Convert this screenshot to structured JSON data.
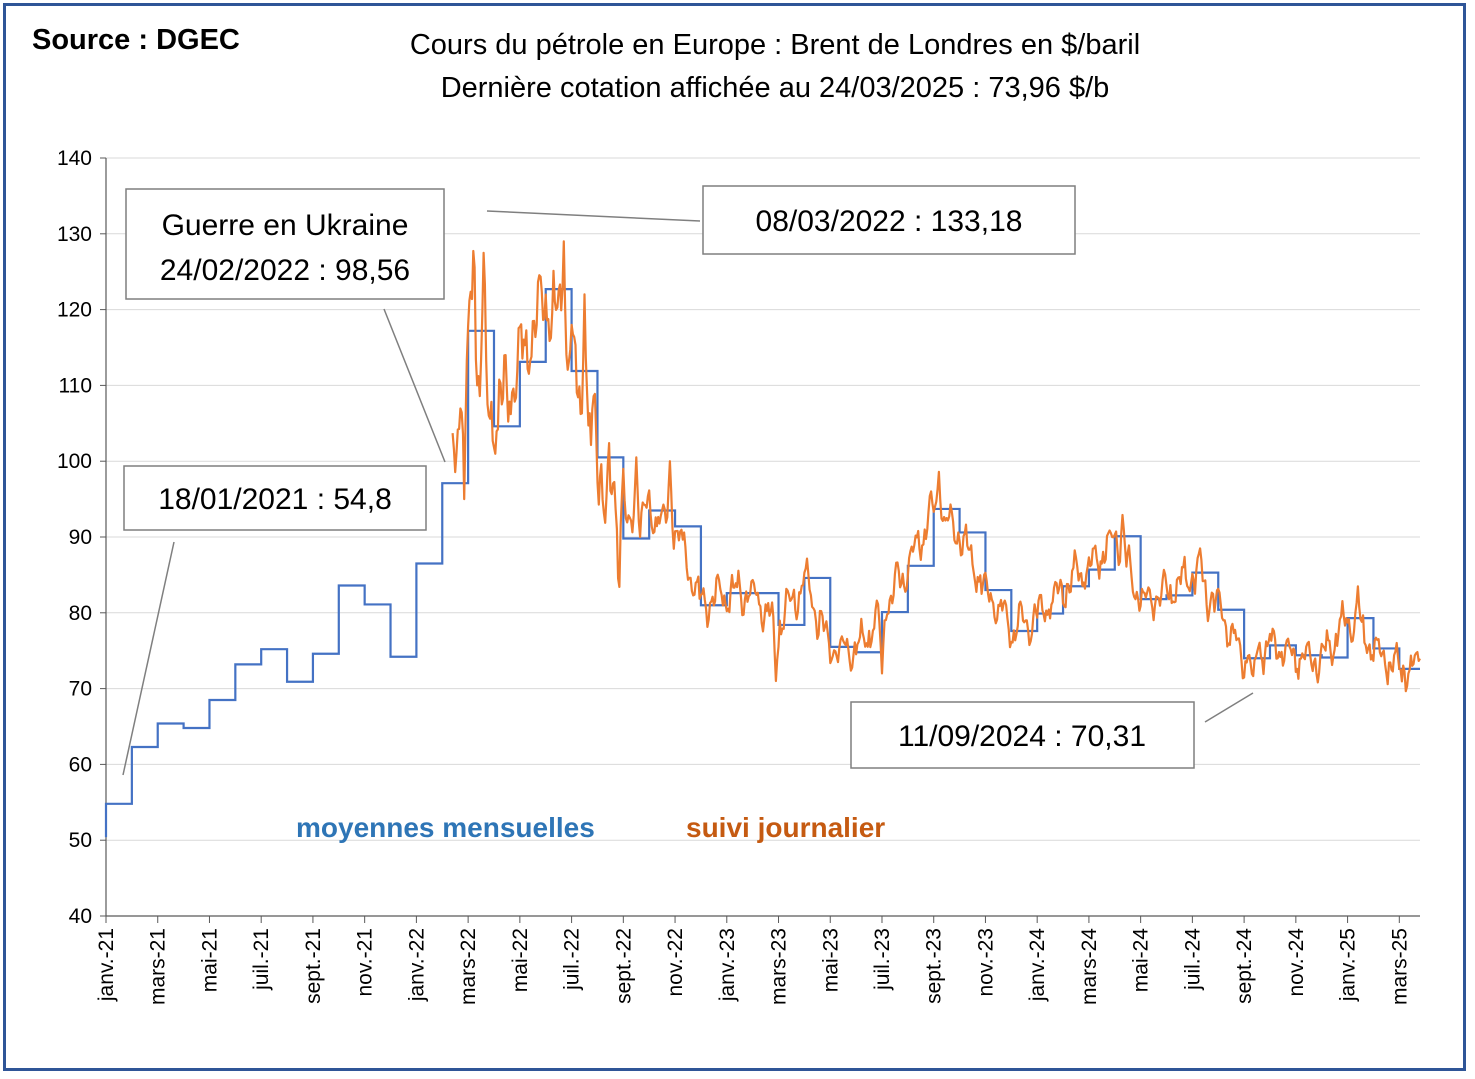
{
  "header": {
    "source": "Source : DGEC",
    "title_line1": "Cours du pétrole en Europe : Brent de Londres en $/baril",
    "title_line2": "Dernière cotation affichée au 24/03/2025 : 73,96 $/b"
  },
  "chart_data": {
    "type": "line",
    "ylim": [
      40,
      140
    ],
    "yticks": [
      40,
      50,
      60,
      70,
      80,
      90,
      100,
      110,
      120,
      130,
      140
    ],
    "xlim_months": [
      0,
      50.8
    ],
    "x_tick_labels": [
      "janv.-21",
      "mars-21",
      "mai-21",
      "juil.-21",
      "sept.-21",
      "nov.-21",
      "janv.-22",
      "mars-22",
      "mai-22",
      "juil.-22",
      "sept.-22",
      "nov.-22",
      "janv.-23",
      "mars-23",
      "mai-23",
      "juil.-23",
      "sept.-23",
      "nov.-23",
      "janv.-24",
      "mars-24",
      "mai-24",
      "juil.-24",
      "sept.-24",
      "nov.-24",
      "janv.-25",
      "mars-25"
    ],
    "grid": "horizontal",
    "series": [
      {
        "name": "moyennes mensuelles",
        "color": "#4472c4",
        "type": "step",
        "values": [
          54.8,
          62.3,
          65.4,
          64.8,
          68.5,
          73.2,
          75.2,
          70.9,
          74.6,
          83.6,
          81.1,
          74.2,
          86.5,
          97.1,
          117.2,
          104.6,
          113.1,
          122.7,
          111.9,
          100.5,
          89.8,
          93.5,
          91.4,
          81.0,
          82.6,
          82.6,
          78.4,
          84.6,
          75.5,
          74.8,
          80.1,
          86.2,
          93.7,
          90.6,
          83.0,
          77.6,
          79.9,
          83.5,
          85.7,
          90.1,
          81.8,
          82.3,
          85.3,
          80.4,
          74.0,
          75.7,
          74.4,
          74.1,
          79.3,
          75.3,
          72.6
        ]
      },
      {
        "name": "suivi journalier",
        "color": "#ed7d31",
        "type": "line"
      }
    ],
    "annotations": [
      {
        "label": "18/01/2021 : 54,8"
      },
      {
        "label_line1": "Guerre en Ukraine",
        "label_line2": "24/02/2022 : 98,56"
      },
      {
        "label": "08/03/2022 : 133,18"
      },
      {
        "label": "11/09/2024 : 70,31"
      }
    ],
    "legend": [
      "moyennes mensuelles",
      "suivi journalier"
    ]
  }
}
